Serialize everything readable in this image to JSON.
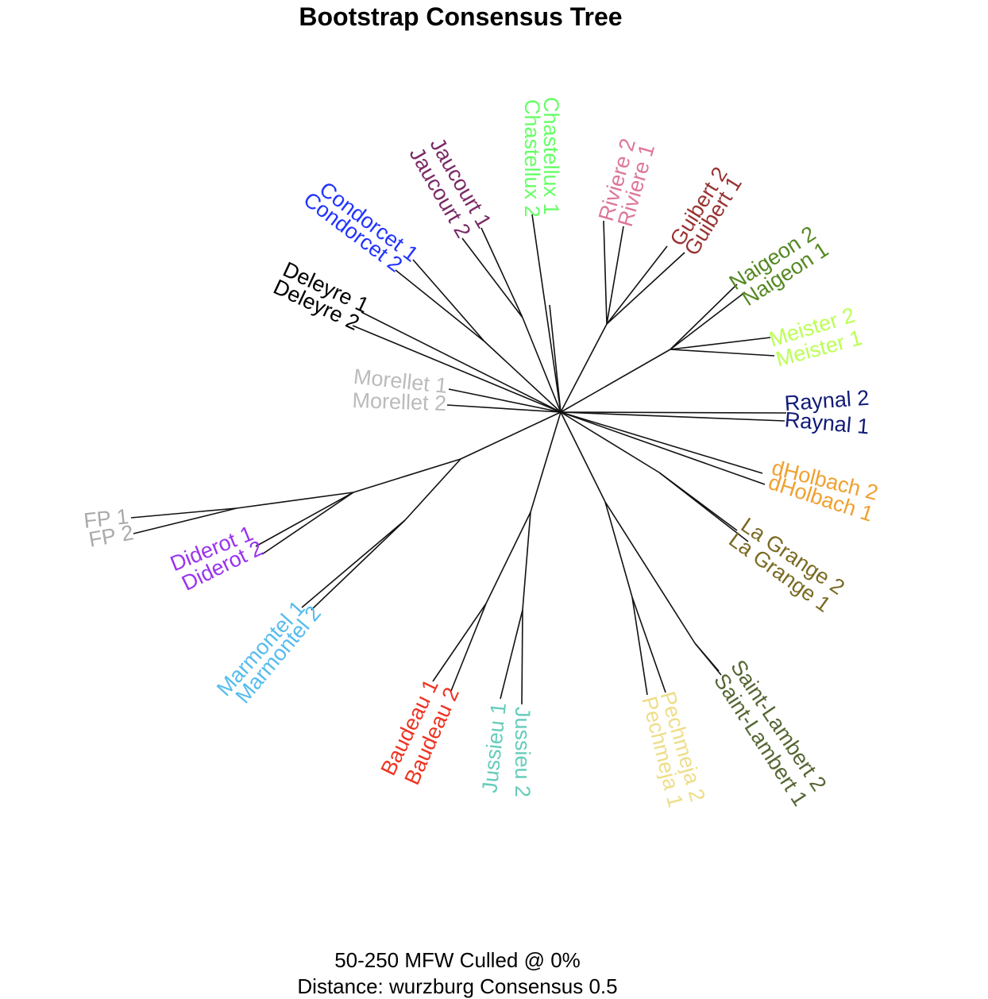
{
  "title": "Bootstrap Consensus Tree",
  "subtitle": {
    "line1": "50-250 MFW  Culled @ 0%",
    "line2": "Distance: wurzburg Consensus 0.5"
  },
  "leaves": [
    {
      "name": "Chastellux 1",
      "color": "#66ff66"
    },
    {
      "name": "Chastellux 2",
      "color": "#66ff66"
    },
    {
      "name": "Jaucourt 1",
      "color": "#7a2a66"
    },
    {
      "name": "Jaucourt 2",
      "color": "#7a2a66"
    },
    {
      "name": "Condorcet 1",
      "color": "#2233ff"
    },
    {
      "name": "Condorcet 2",
      "color": "#2233ff"
    },
    {
      "name": "Deleyre 1",
      "color": "#000000"
    },
    {
      "name": "Deleyre 2",
      "color": "#000000"
    },
    {
      "name": "Morellet 1",
      "color": "#bbbbbb"
    },
    {
      "name": "Morellet 2",
      "color": "#bbbbbb"
    },
    {
      "name": "FP 1",
      "color": "#aaaaaa"
    },
    {
      "name": "FP 2",
      "color": "#aaaaaa"
    },
    {
      "name": "Diderot 1",
      "color": "#9933ee"
    },
    {
      "name": "Diderot 2",
      "color": "#9933ee"
    },
    {
      "name": "Marmontel 1",
      "color": "#55bbee"
    },
    {
      "name": "Marmontel 2",
      "color": "#55bbee"
    },
    {
      "name": "Baudeau 1",
      "color": "#ee3322"
    },
    {
      "name": "Baudeau 2",
      "color": "#ee3322"
    },
    {
      "name": "Jussieu 1",
      "color": "#66ccbb"
    },
    {
      "name": "Jussieu 2",
      "color": "#66ccbb"
    },
    {
      "name": "Pechmeja 1",
      "color": "#eedd88"
    },
    {
      "name": "Pechmeja 2",
      "color": "#eedd88"
    },
    {
      "name": "Saint-Lambert 1",
      "color": "#556633"
    },
    {
      "name": "Saint-Lambert 2",
      "color": "#556633"
    },
    {
      "name": "La Grange 1",
      "color": "#7a6a22"
    },
    {
      "name": "La Grange 2",
      "color": "#7a6a22"
    },
    {
      "name": "dHolbach 1",
      "color": "#f0a030"
    },
    {
      "name": "dHolbach 2",
      "color": "#f0a030"
    },
    {
      "name": "Raynal 1",
      "color": "#111a77"
    },
    {
      "name": "Raynal 2",
      "color": "#111a77"
    },
    {
      "name": "Meister 1",
      "color": "#bbff55"
    },
    {
      "name": "Meister 2",
      "color": "#bbff55"
    },
    {
      "name": "Naigeon 1",
      "color": "#558822"
    },
    {
      "name": "Naigeon 2",
      "color": "#558822"
    },
    {
      "name": "Guibert 1",
      "color": "#993333"
    },
    {
      "name": "Guibert 2",
      "color": "#993333"
    },
    {
      "name": "Riviere 1",
      "color": "#dd7799"
    },
    {
      "name": "Riviere 2",
      "color": "#dd7799"
    }
  ]
}
